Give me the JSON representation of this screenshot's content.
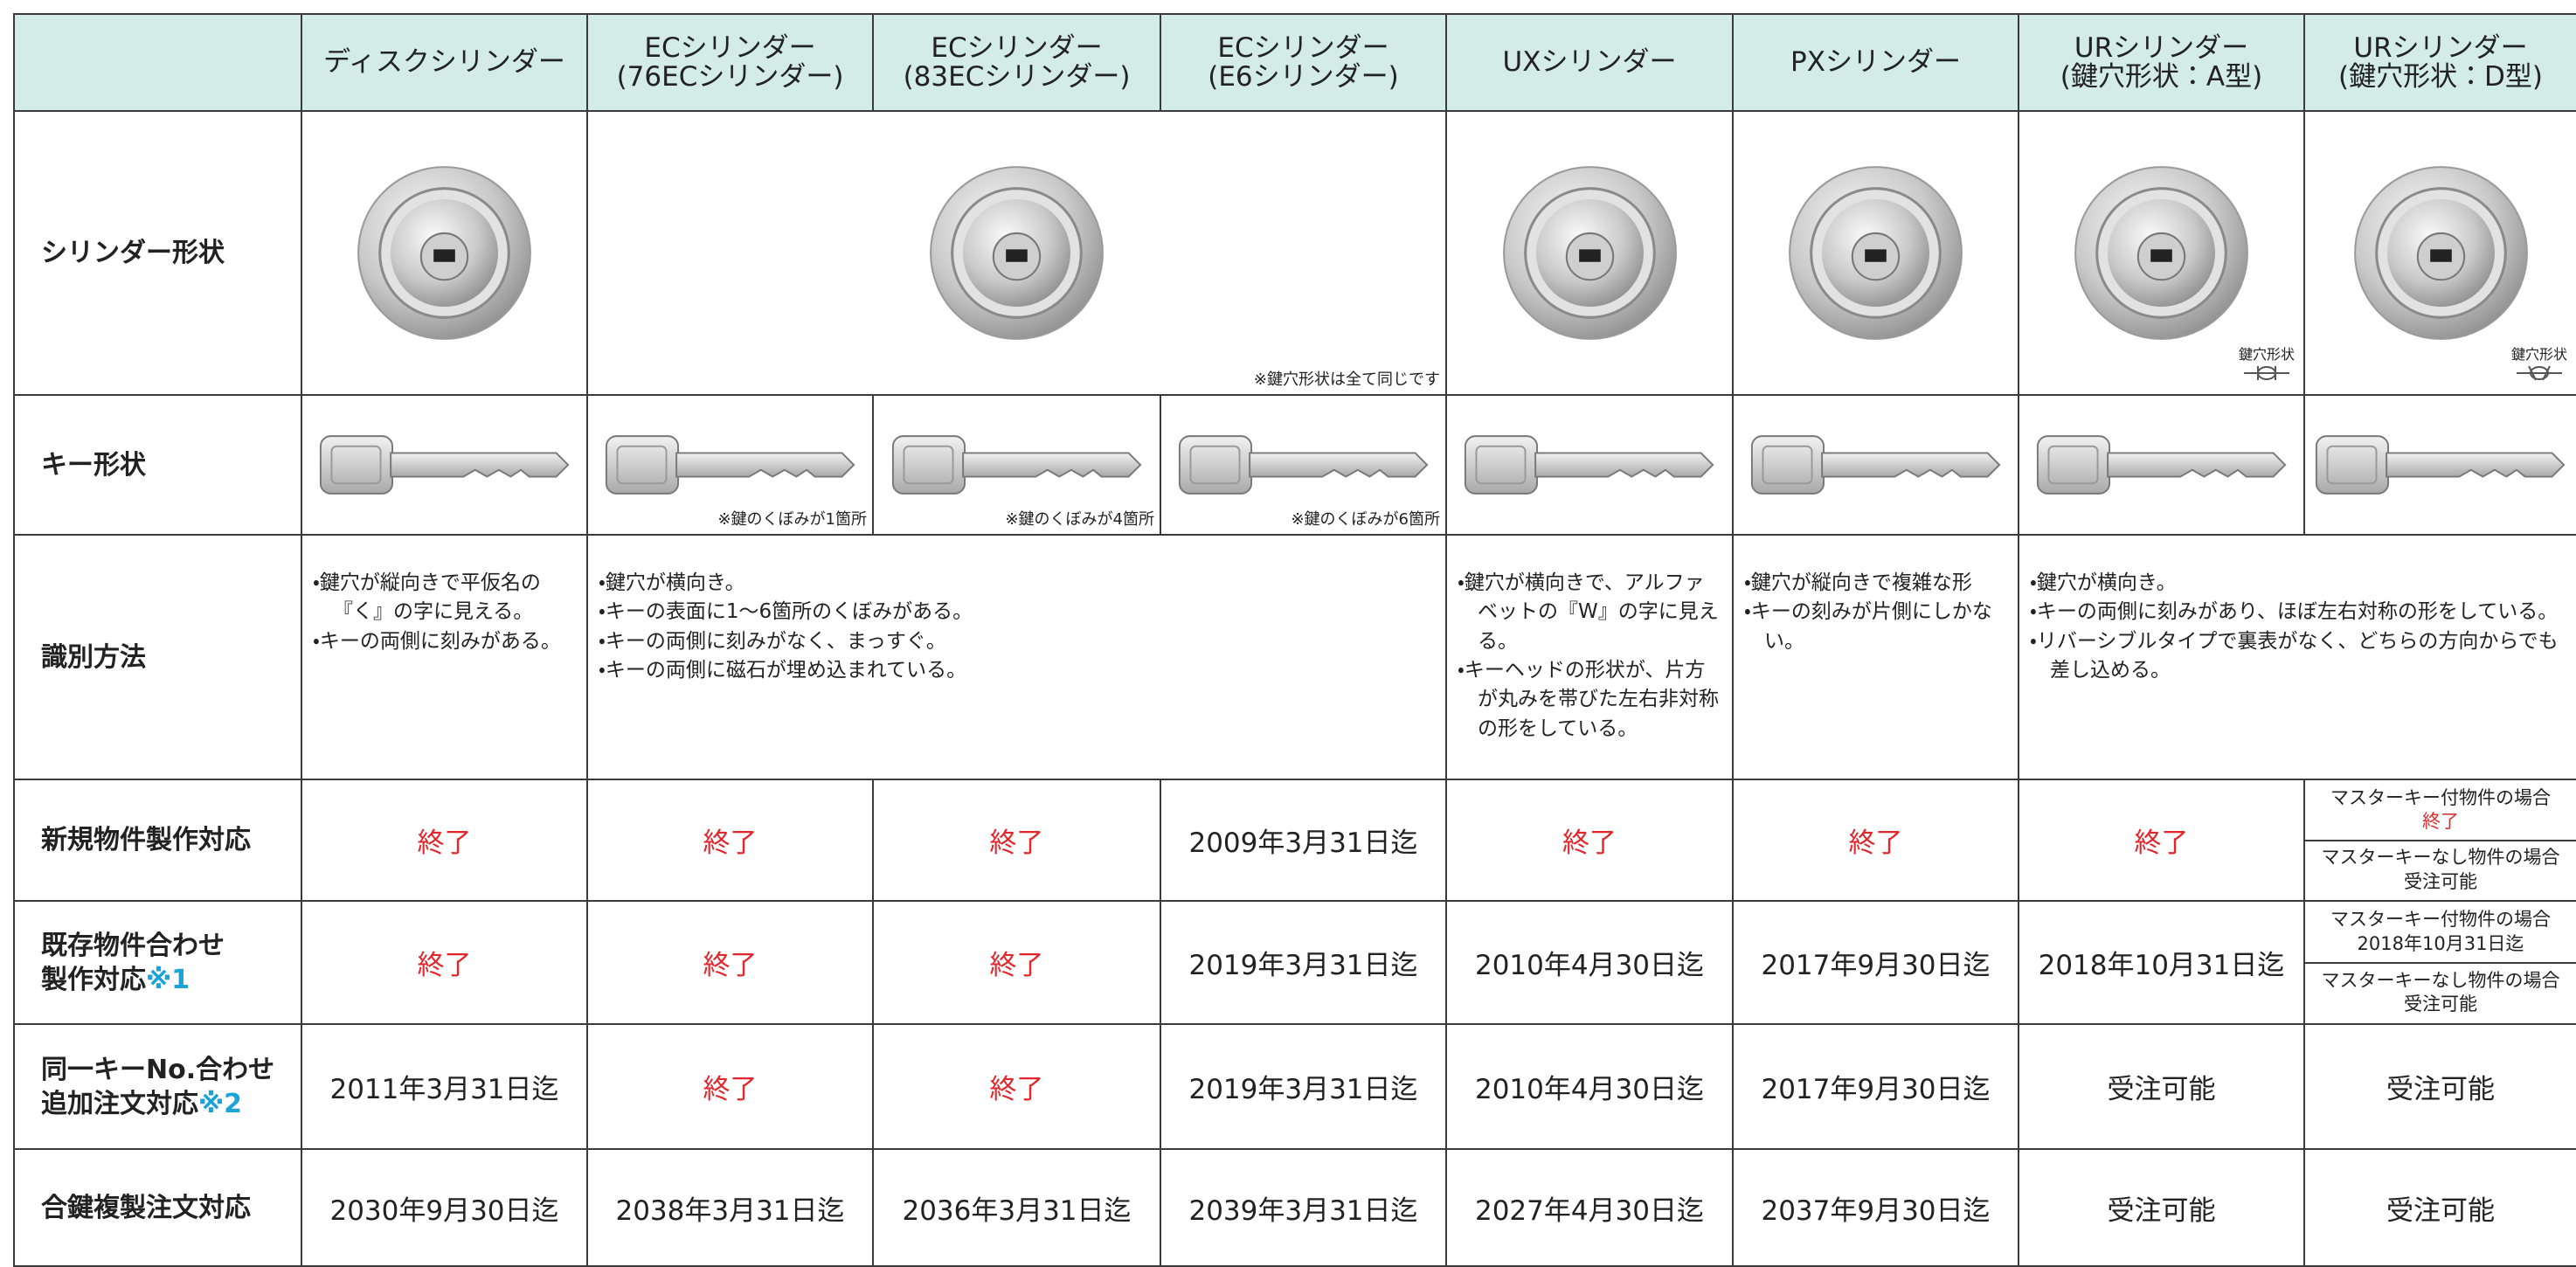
{
  "table": {
    "columns": [
      [
        "ディスクシリンダー"
      ],
      [
        "ECシリンダー",
        "(76ECシリンダー)"
      ],
      [
        "ECシリンダー",
        "(83ECシリンダー)"
      ],
      [
        "ECシリンダー",
        "(E6シリンダー)"
      ],
      [
        "UXシリンダー"
      ],
      [
        "PXシリンダー"
      ],
      [
        "URシリンダー",
        "(鍵穴形状：A型)"
      ],
      [
        "URシリンダー",
        "(鍵穴形状：D型)"
      ]
    ],
    "shape_row": {
      "label": "シリンダー形状",
      "ec_note": "※鍵穴形状は全て同じです",
      "keyhole_labels": [
        "鍵穴形状",
        "鍵穴形状"
      ]
    },
    "key_row": {
      "label": "キー形状",
      "notes": [
        "※鍵のくぼみが1箇所",
        "※鍵のくぼみが4箇所",
        "※鍵のくぼみが6箇所"
      ]
    },
    "id_row": {
      "label": "識別方法",
      "cells": [
        [
          "・鍵穴が縦向きで平仮名の『く』の字に見える。",
          "・キーの両側に刻みがある。"
        ],
        [
          "・鍵穴が横向き。",
          "・キーの表面に1～6箇所のくぼみがある。",
          "・キーの両側に刻みがなく、まっすぐ。",
          "・キーの両側に磁石が埋め込まれている。"
        ],
        [
          "・鍵穴が横向きで、アルファベットの『W』の字に見える。",
          "・キーヘッドの形状が、片方が丸みを帯びた左右非対称の形をしている。"
        ],
        [
          "・鍵穴が縦向きで複雑な形",
          "・キーの刻みが片側にしかない。"
        ],
        [
          "・鍵穴が横向き。",
          "・キーの両側に刻みがあり、ほぼ左右対称の形をしている。",
          "・リバーシブルタイプで裏表がなく、どちらの方向からでも差し込める。"
        ]
      ]
    },
    "new_row": {
      "label": [
        "新規物件製作対応"
      ],
      "cells": [
        "終了",
        "終了",
        "終了",
        "2009年3月31日迄",
        "終了",
        "終了",
        "終了"
      ],
      "split": [
        {
          "condition": "マスターキー付物件の場合",
          "value": "終了"
        },
        {
          "condition": "マスターキーなし物件の場合",
          "value": "受注可能"
        }
      ]
    },
    "existing_row": {
      "label": [
        "既存物件合わせ",
        "製作対応"
      ],
      "note": "※1",
      "cells": [
        "終了",
        "終了",
        "終了",
        "2019年3月31日迄",
        "2010年4月30日迄",
        "2017年9月30日迄",
        "2018年10月31日迄"
      ],
      "split": [
        {
          "condition": "マスターキー付物件の場合",
          "value": "2018年10月31日迄"
        },
        {
          "condition": "マスターキーなし物件の場合",
          "value": "受注可能"
        }
      ]
    },
    "same_key_row": {
      "label": [
        "同一キーNo.合わせ",
        "追加注文対応"
      ],
      "note": "※2",
      "cells": [
        "2011年3月31日迄",
        "終了",
        "終了",
        "2019年3月31日迄",
        "2010年4月30日迄",
        "2017年9月30日迄",
        "受注可能",
        "受注可能"
      ]
    },
    "duplicate_row": {
      "label": [
        "合鍵複製注文対応"
      ],
      "cells": [
        "2030年9月30日迄",
        "2038年3月31日迄",
        "2036年3月31日迄",
        "2039年3月31日迄",
        "2027年4月30日迄",
        "2037年9月30日迄",
        "受注可能",
        "受注可能"
      ]
    }
  }
}
